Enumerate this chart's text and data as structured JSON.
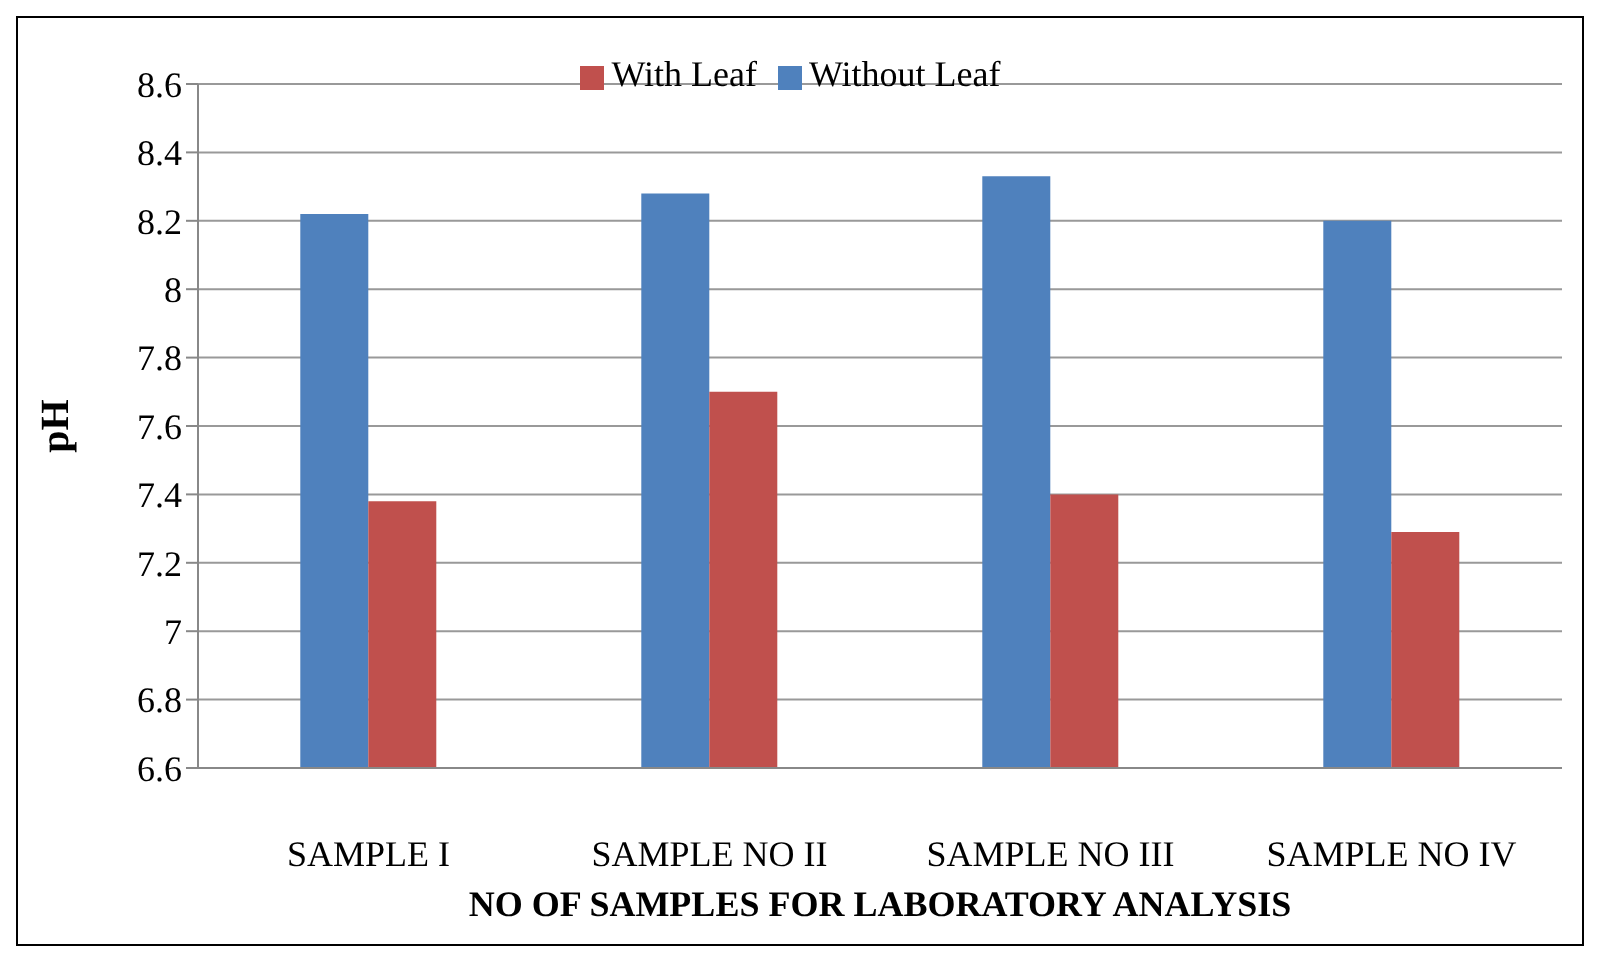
{
  "chart_data": {
    "type": "bar",
    "xlabel": "NO OF SAMPLES FOR LABORATORY ANALYSIS",
    "ylabel": "pH",
    "categories": [
      "SAMPLE I",
      "SAMPLE NO II",
      "SAMPLE NO III",
      "SAMPLE NO IV"
    ],
    "series": [
      {
        "name": "Without Leaf",
        "color": "#4f81bd",
        "values": [
          8.22,
          8.28,
          8.33,
          8.2
        ]
      },
      {
        "name": "With Leaf",
        "color": "#c0504d",
        "values": [
          7.38,
          7.7,
          7.4,
          7.29
        ]
      }
    ],
    "ylim": [
      6.6,
      8.6
    ],
    "yticks": [
      6.6,
      6.8,
      7,
      7.2,
      7.4,
      7.6,
      7.8,
      8,
      8.2,
      8.4,
      8.6
    ],
    "grid": "y",
    "legend": "top"
  }
}
